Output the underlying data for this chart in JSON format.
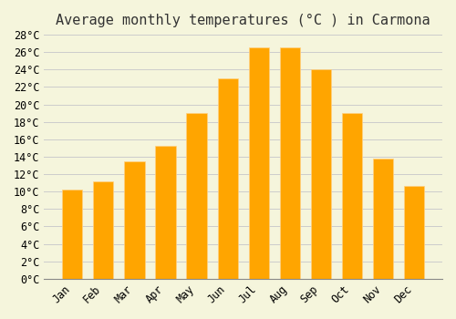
{
  "title": "Average monthly temperatures (°C ) in Carmona",
  "months": [
    "Jan",
    "Feb",
    "Mar",
    "Apr",
    "May",
    "Jun",
    "Jul",
    "Aug",
    "Sep",
    "Oct",
    "Nov",
    "Dec"
  ],
  "values": [
    10.2,
    11.2,
    13.5,
    15.3,
    19.0,
    23.0,
    26.5,
    26.5,
    24.0,
    19.0,
    13.8,
    10.7
  ],
  "bar_color": "#FFA500",
  "bar_edge_color": "#FFB733",
  "ylim": [
    0,
    28
  ],
  "ytick_step": 2,
  "background_color": "#F5F5DC",
  "grid_color": "#CCCCCC",
  "title_fontsize": 11,
  "tick_fontsize": 8.5,
  "font_family": "monospace"
}
